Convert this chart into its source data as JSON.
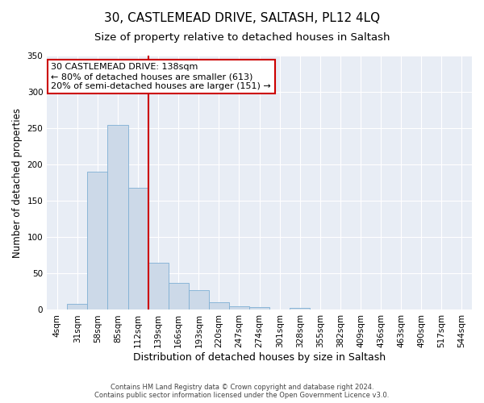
{
  "title": "30, CASTLEMEAD DRIVE, SALTASH, PL12 4LQ",
  "subtitle": "Size of property relative to detached houses in Saltash",
  "xlabel": "Distribution of detached houses by size in Saltash",
  "ylabel": "Number of detached properties",
  "categories": [
    "4sqm",
    "31sqm",
    "58sqm",
    "85sqm",
    "112sqm",
    "139sqm",
    "166sqm",
    "193sqm",
    "220sqm",
    "247sqm",
    "274sqm",
    "301sqm",
    "328sqm",
    "355sqm",
    "382sqm",
    "409sqm",
    "436sqm",
    "463sqm",
    "490sqm",
    "517sqm",
    "544sqm"
  ],
  "values": [
    0,
    8,
    190,
    255,
    168,
    65,
    37,
    27,
    10,
    5,
    4,
    0,
    3,
    0,
    0,
    1,
    0,
    0,
    0,
    0,
    1
  ],
  "bar_color": "#ccd9e8",
  "bar_edge_color": "#7fafd4",
  "vline_color": "#cc0000",
  "annotation_text": "30 CASTLEMEAD DRIVE: 138sqm\n← 80% of detached houses are smaller (613)\n20% of semi-detached houses are larger (151) →",
  "annotation_box_color": "#ffffff",
  "annotation_box_edge": "#cc0000",
  "ylim": [
    0,
    350
  ],
  "yticks": [
    0,
    50,
    100,
    150,
    200,
    250,
    300,
    350
  ],
  "plot_bg_color": "#e8edf5",
  "footer_line1": "Contains HM Land Registry data © Crown copyright and database right 2024.",
  "footer_line2": "Contains public sector information licensed under the Open Government Licence v3.0.",
  "title_fontsize": 11,
  "subtitle_fontsize": 9.5,
  "tick_fontsize": 7.5,
  "ylabel_fontsize": 8.5,
  "xlabel_fontsize": 9,
  "annotation_fontsize": 8,
  "footer_fontsize": 6
}
